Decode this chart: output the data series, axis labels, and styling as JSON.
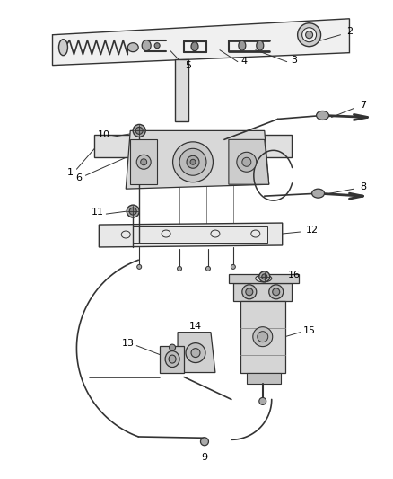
{
  "bg_color": "#ffffff",
  "line_color": "#333333",
  "label_color": "#000000",
  "figsize": [
    4.38,
    5.33
  ],
  "dpi": 100,
  "lw": 0.9
}
